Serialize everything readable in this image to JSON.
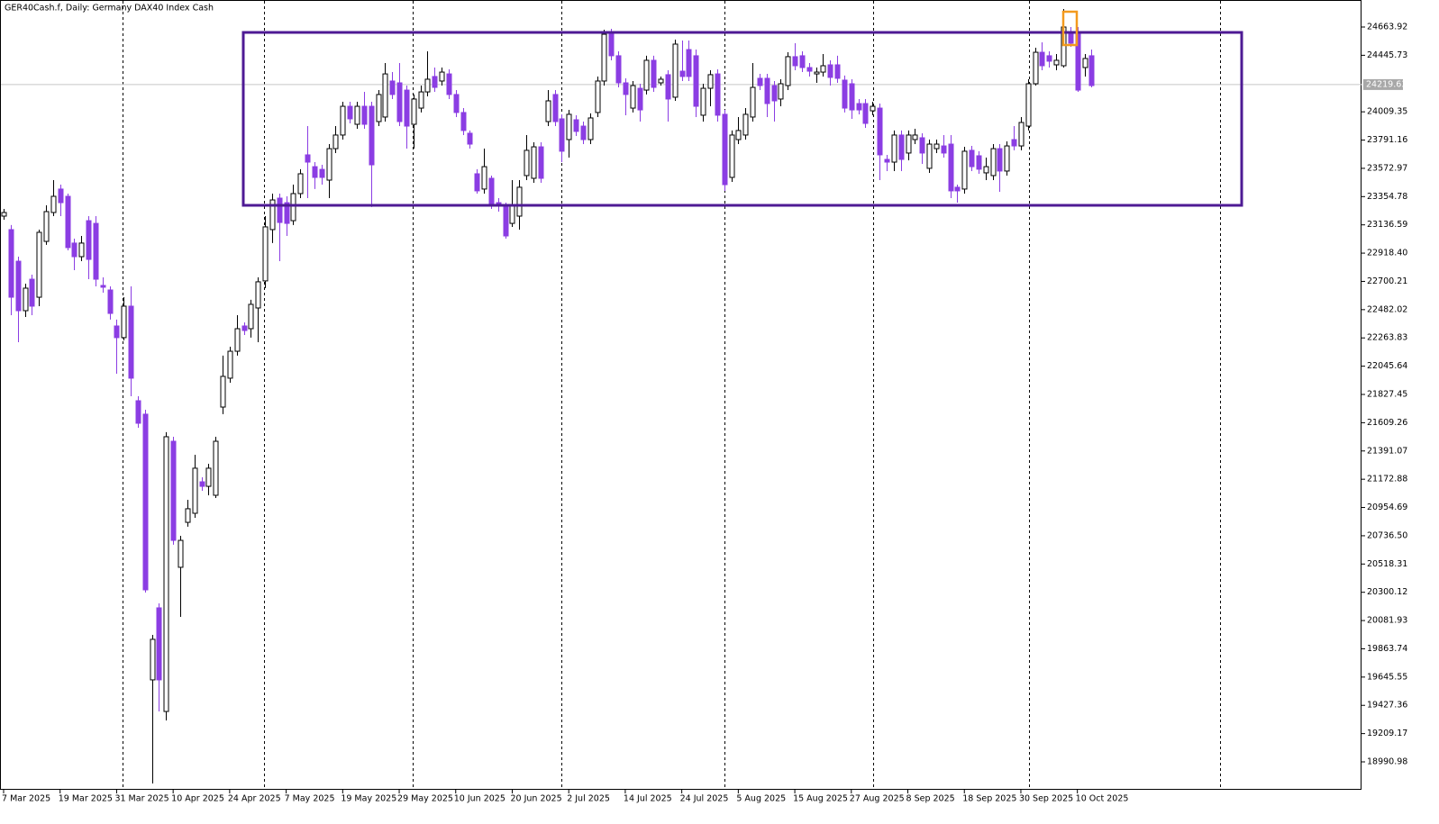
{
  "chart_data": {
    "type": "candlestick",
    "title": "GER40Cash.f, Daily:  Germany DAX40 Index Cash",
    "categories": [
      "7 Mar 2025",
      null,
      null,
      null,
      null,
      null,
      null,
      null,
      "19 Mar 2025",
      null,
      null,
      null,
      null,
      null,
      null,
      null,
      "31 Mar 2025",
      null,
      null,
      null,
      null,
      null,
      null,
      null,
      "10 Apr 2025",
      null,
      null,
      null,
      null,
      null,
      null,
      null,
      "24 Apr 2025",
      null,
      null,
      null,
      null,
      null,
      null,
      null,
      "7 May 2025",
      null,
      null,
      null,
      null,
      null,
      null,
      null,
      "19 May 2025",
      null,
      null,
      null,
      null,
      null,
      null,
      null,
      "29 May 2025",
      null,
      null,
      null,
      null,
      null,
      null,
      null,
      "10 Jun 2025",
      null,
      null,
      null,
      null,
      null,
      null,
      null,
      "20 Jun 2025",
      null,
      null,
      null,
      null,
      null,
      null,
      null,
      "2 Jul 2025",
      null,
      null,
      null,
      null,
      null,
      null,
      null,
      "14 Jul 2025",
      null,
      null,
      null,
      null,
      null,
      null,
      null,
      "24 Jul 2025",
      null,
      null,
      null,
      null,
      null,
      null,
      null,
      "5 Aug 2025",
      null,
      null,
      null,
      null,
      null,
      null,
      null,
      "15 Aug 2025",
      null,
      null,
      null,
      null,
      null,
      null,
      null,
      "27 Aug 2025",
      null,
      null,
      null,
      null,
      null,
      null,
      null,
      "8 Sep 2025",
      null,
      null,
      null,
      null,
      null,
      null,
      null,
      "18 Sep 2025",
      null,
      null,
      null,
      null,
      null,
      null,
      null,
      "30 Sep 2025",
      null,
      null,
      null,
      null,
      null,
      null,
      null,
      "10 Oct 2025",
      null,
      null
    ],
    "open": [
      23204,
      23100,
      22856,
      22474,
      22717,
      22578,
      23009,
      23232,
      23413,
      23357,
      22996,
      22891,
      23169,
      23148,
      22669,
      22634,
      22356,
      22266,
      22509,
      21779,
      21675,
      19624,
      20180,
      19380,
      21466,
      20493,
      20840,
      20910,
      21153,
      21118,
      21049,
      21730,
      21953,
      22161,
      22356,
      22335,
      22495,
      22704,
      23100,
      23343,
      23308,
      23169,
      23378,
      23677,
      23586,
      23565,
      23482,
      23725,
      23830,
      24052,
      23913,
      24052,
      24052,
      23934,
      23969,
      24247,
      24233,
      24177,
      23913,
      24038,
      24163,
      24282,
      24247,
      24302,
      24143,
      24004,
      23844,
      23531,
      23413,
      23496,
      23308,
      23274,
      23148,
      23204,
      23517,
      23496,
      23739,
      23934,
      24143,
      23955,
      23795,
      23948,
      23899,
      23795,
      24004,
      24247,
      24615,
      24442,
      24233,
      24038,
      24191,
      24177,
      24407,
      24233,
      24296,
      24122,
      24323,
      24490,
      24442,
      23983,
      24191,
      24302,
      23990,
      23503,
      23795,
      23830,
      23969,
      24268,
      24268,
      24212,
      24108,
      24212,
      24435,
      24442,
      24351,
      24302,
      24316,
      24372,
      24372,
      24254,
      24226,
      24073,
      24073,
      24017,
      24038,
      23642,
      23621,
      23830,
      23691,
      23795,
      23809,
      23573,
      23725,
      23746,
      23760,
      23427,
      23413,
      23712,
      23670,
      23538,
      23517,
      23725,
      23552,
      23795,
      23746,
      23899,
      24226,
      24469,
      24442,
      24372,
      24365,
      24629,
      24629,
      24351,
      24442
    ],
    "high": [
      23260,
      23135,
      22891,
      22683,
      22752,
      23100,
      23287,
      23482,
      23447,
      23378,
      23030,
      23051,
      23204,
      23204,
      22731,
      22662,
      22405,
      22578,
      22662,
      21814,
      21709,
      19971,
      20215,
      21536,
      21501,
      20736,
      21014,
      21362,
      21188,
      21292,
      21501,
      22127,
      22196,
      22439,
      22384,
      22558,
      22731,
      23204,
      23378,
      23378,
      23357,
      23447,
      23566,
      23899,
      23621,
      23600,
      23760,
      23899,
      24087,
      24087,
      24087,
      24163,
      24087,
      24177,
      24386,
      24316,
      24386,
      24212,
      24143,
      24212,
      24476,
      24351,
      24351,
      24337,
      24177,
      24038,
      23865,
      23566,
      23725,
      23517,
      23343,
      23308,
      23482,
      23482,
      23830,
      23774,
      23774,
      24177,
      24177,
      23990,
      24024,
      23983,
      23934,
      23997,
      24282,
      24643,
      24650,
      24476,
      24268,
      24247,
      24226,
      24442,
      24442,
      24282,
      24330,
      24567,
      24560,
      24560,
      24490,
      24226,
      24330,
      24337,
      24024,
      23865,
      23969,
      24038,
      24386,
      24302,
      24302,
      24247,
      24261,
      24469,
      24539,
      24476,
      24386,
      24351,
      24455,
      24407,
      24442,
      24289,
      24261,
      24108,
      24108,
      24087,
      24073,
      23677,
      23865,
      23865,
      23865,
      23878,
      23844,
      23795,
      23795,
      23830,
      23830,
      23447,
      23739,
      23746,
      23705,
      23656,
      23760,
      23760,
      23781,
      23899,
      23969,
      24261,
      24504,
      24546,
      24476,
      24455,
      24803,
      24664,
      24664,
      24455,
      24490
    ],
    "low": [
      23176,
      22439,
      22231,
      22425,
      22439,
      22509,
      22982,
      23204,
      23204,
      22940,
      22787,
      22856,
      22717,
      22662,
      22613,
      22405,
      21987,
      22245,
      21814,
      21570,
      20298,
      18824,
      19380,
      19311,
      20667,
      20110,
      20806,
      20875,
      21084,
      21049,
      21028,
      21675,
      21918,
      22127,
      22286,
      22266,
      22231,
      22648,
      22996,
      22856,
      23051,
      23135,
      23343,
      23343,
      23413,
      23447,
      23343,
      23691,
      23795,
      23920,
      23878,
      23878,
      23274,
      23899,
      23934,
      24108,
      23899,
      23725,
      23725,
      24004,
      24129,
      24163,
      24212,
      24108,
      23969,
      23830,
      23725,
      23378,
      23378,
      23260,
      23239,
      23030,
      23121,
      23100,
      23482,
      23461,
      23461,
      23899,
      23899,
      23621,
      23656,
      23823,
      23760,
      23760,
      23969,
      24212,
      24407,
      24198,
      23983,
      24004,
      23934,
      24143,
      24163,
      24212,
      23934,
      24094,
      24247,
      24247,
      23969,
      23934,
      24052,
      23934,
      23399,
      23468,
      23760,
      23795,
      23934,
      24177,
      23969,
      23934,
      24052,
      24177,
      24330,
      24316,
      24282,
      24233,
      24282,
      24212,
      24233,
      24004,
      23955,
      23990,
      23885,
      23983,
      23482,
      23552,
      23552,
      23552,
      23635,
      23760,
      23607,
      23538,
      23691,
      23656,
      23343,
      23308,
      23378,
      23552,
      23531,
      23482,
      23482,
      23392,
      23517,
      23712,
      23712,
      23865,
      24212,
      24330,
      24351,
      24330,
      24351,
      24511,
      24163,
      24282,
      24198
    ],
    "close": [
      23232,
      22578,
      22474,
      22648,
      22509,
      23079,
      23239,
      23357,
      23308,
      22961,
      22891,
      22996,
      22870,
      22717,
      22655,
      22453,
      22266,
      22509,
      21953,
      21605,
      20319,
      19937,
      19624,
      21501,
      20701,
      20701,
      20945,
      21258,
      21118,
      21258,
      21466,
      21967,
      22161,
      22335,
      22321,
      22523,
      22697,
      23121,
      23329,
      23155,
      23148,
      23378,
      23531,
      23621,
      23503,
      23503,
      23725,
      23830,
      24052,
      23955,
      24052,
      23913,
      23600,
      24143,
      24302,
      24143,
      23934,
      23899,
      24108,
      24163,
      24261,
      24198,
      24316,
      24143,
      24004,
      23865,
      23760,
      23399,
      23586,
      23301,
      23287,
      23051,
      23287,
      23427,
      23712,
      23739,
      23496,
      24094,
      23934,
      23705,
      23990,
      23858,
      23795,
      23962,
      24247,
      24608,
      24442,
      24233,
      24143,
      24212,
      24024,
      24407,
      24198,
      24261,
      24108,
      24532,
      24282,
      24282,
      24052,
      24191,
      24296,
      23983,
      23447,
      23830,
      23865,
      23990,
      24198,
      24212,
      24073,
      24094,
      24226,
      24435,
      24365,
      24351,
      24323,
      24316,
      24365,
      24275,
      24268,
      24038,
      24024,
      24024,
      23920,
      24052,
      23677,
      23621,
      23830,
      23642,
      23830,
      23830,
      23691,
      23760,
      23760,
      23691,
      23399,
      23399,
      23705,
      23586,
      23566,
      23586,
      23725,
      23552,
      23746,
      23746,
      23927,
      24226,
      24469,
      24365,
      24400,
      24407,
      24664,
      24539,
      24177,
      24421,
      24212
    ],
    "up_color": "#ffffff",
    "down_color": "#8b3de3",
    "ylim": [
      18775.5,
      24872.5
    ],
    "yticks": [
      24663.92,
      24445.73,
      24009.35,
      23791.16,
      23572.97,
      23354.78,
      23136.59,
      {
        "value": 22918.4,
        "label": "22918.40"
      },
      22700.21,
      22482.02,
      22263.83,
      22045.64,
      21827.45,
      21609.26,
      21391.07,
      21172.88,
      20954.69,
      {
        "value": 20736.5,
        "label": "20736.50"
      },
      20518.31,
      20300.12,
      20081.93,
      19863.74,
      19645.55,
      19427.36,
      19209.17,
      18990.98
    ],
    "current_price": 24219.63,
    "grid": false
  }
}
